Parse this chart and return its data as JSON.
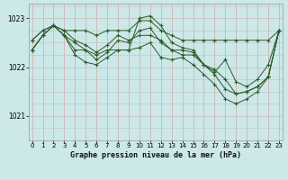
{
  "title": "Graphe pression niveau de la mer (hPa)",
  "bg_color": "#cce8e8",
  "line_color": "#2a5c2a",
  "grid_color_v": "#d4a8a8",
  "grid_color_h": "#c8c0c0",
  "xlim_min": 0,
  "xlim_max": 23,
  "ylim_min": 1020.5,
  "ylim_max": 1023.3,
  "yticks": [
    1021,
    1022,
    1023
  ],
  "xticks": [
    0,
    1,
    2,
    3,
    4,
    5,
    6,
    7,
    8,
    9,
    10,
    11,
    12,
    13,
    14,
    15,
    16,
    17,
    18,
    19,
    20,
    21,
    22,
    23
  ],
  "series": [
    [
      1022.55,
      1022.75,
      1022.85,
      1022.75,
      1022.75,
      1022.75,
      1022.65,
      1022.75,
      1022.75,
      1022.75,
      1022.95,
      1022.95,
      1022.75,
      1022.65,
      1022.55,
      1022.55,
      1022.55,
      1022.55,
      1022.55,
      1022.55,
      1022.55,
      1022.55,
      1022.55,
      1022.75
    ],
    [
      1022.55,
      1022.75,
      1022.85,
      1022.75,
      1022.55,
      1022.45,
      1022.3,
      1022.45,
      1022.65,
      1022.55,
      1022.65,
      1022.65,
      1022.55,
      1022.35,
      1022.25,
      1022.25,
      1022.05,
      1021.9,
      1022.15,
      1021.7,
      1021.6,
      1021.75,
      1022.05,
      1022.75
    ],
    [
      1022.35,
      1022.65,
      1022.85,
      1022.65,
      1022.35,
      1022.35,
      1022.25,
      1022.35,
      1022.35,
      1022.35,
      1023.0,
      1023.05,
      1022.85,
      1022.5,
      1022.4,
      1022.35,
      1022.05,
      1021.95,
      1021.75,
      1021.45,
      1021.5,
      1021.6,
      1021.8,
      1022.75
    ],
    [
      1022.35,
      1022.65,
      1022.85,
      1022.65,
      1022.5,
      1022.35,
      1022.15,
      1022.3,
      1022.55,
      1022.5,
      1022.75,
      1022.8,
      1022.5,
      1022.35,
      1022.35,
      1022.3,
      1022.05,
      1021.85,
      1021.55,
      1021.45,
      1021.5,
      1021.6,
      1021.8,
      1022.75
    ],
    [
      1022.35,
      1022.65,
      1022.85,
      1022.65,
      1022.25,
      1022.1,
      1022.05,
      1022.2,
      1022.35,
      1022.35,
      1022.4,
      1022.5,
      1022.2,
      1022.15,
      1022.2,
      1022.05,
      1021.85,
      1021.65,
      1021.35,
      1021.25,
      1021.35,
      1021.5,
      1021.8,
      1022.75
    ]
  ]
}
